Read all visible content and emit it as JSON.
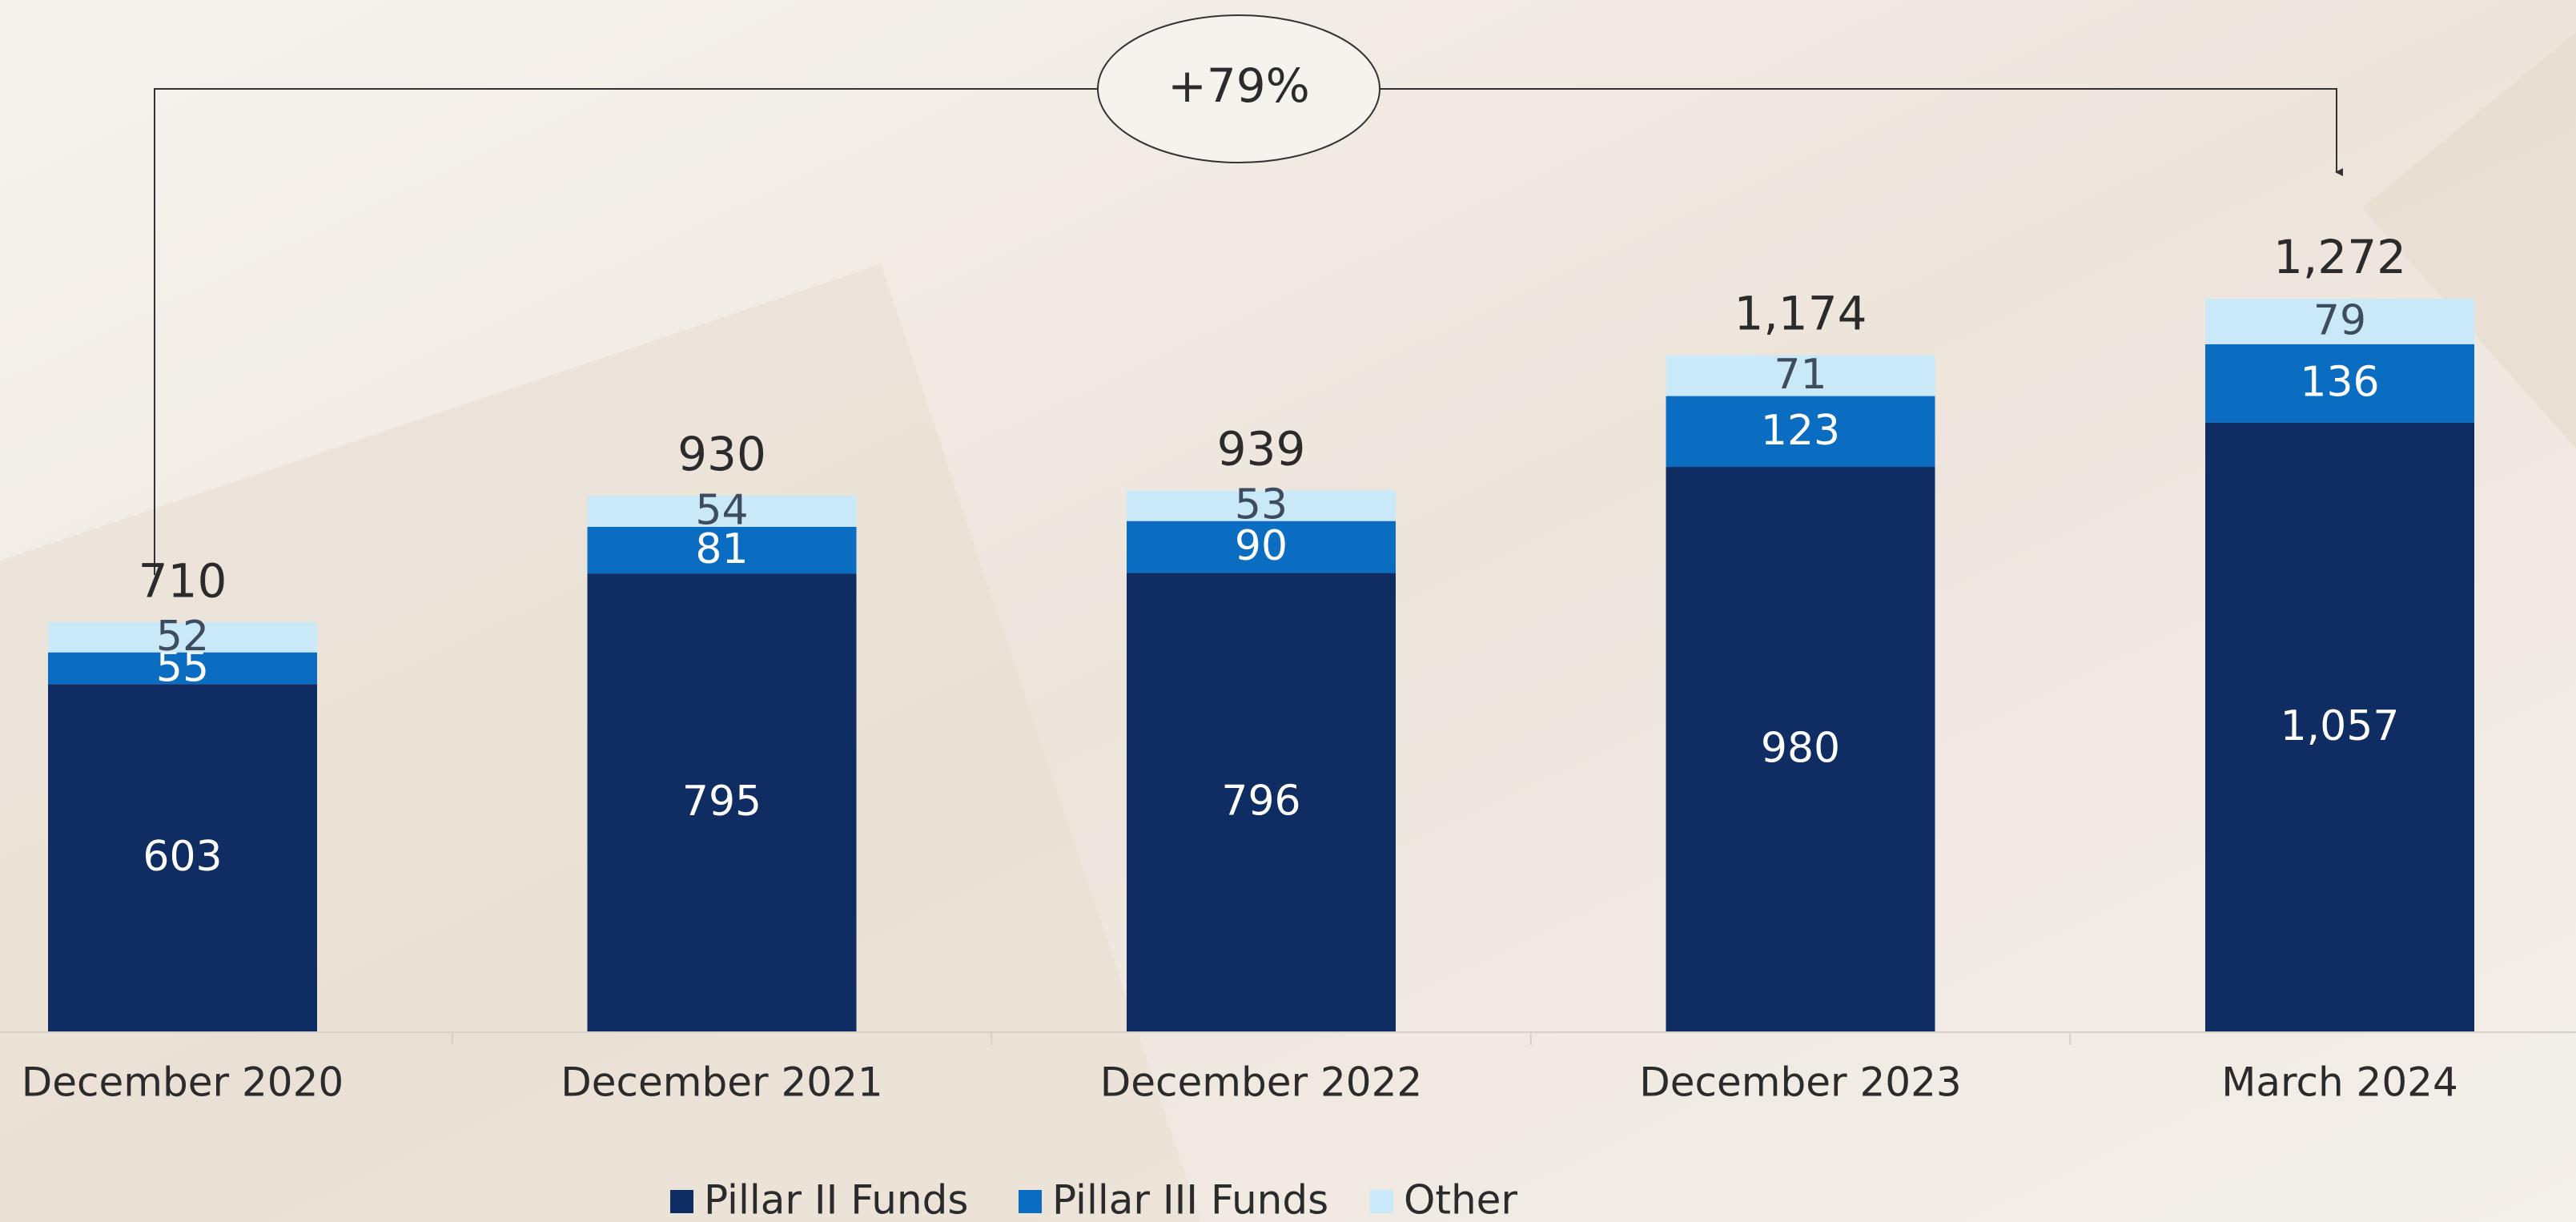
{
  "chart_data": {
    "type": "stacked_bar",
    "annotation": "+79%",
    "categories": [
      "December 2020",
      "December 2021",
      "December 2022",
      "December 2023",
      "March 2024"
    ],
    "series": [
      {
        "name": "Pillar II Funds",
        "color": "#0f2d62",
        "values": [
          603,
          795,
          796,
          980,
          1057
        ],
        "value_labels": [
          "603",
          "795",
          "796",
          "980",
          "1,057"
        ]
      },
      {
        "name": "Pillar III Funds",
        "color": "#0b6dc1",
        "values": [
          55,
          81,
          90,
          123,
          136
        ]
      },
      {
        "name": "Other",
        "color": "#c9e8f8",
        "values": [
          52,
          54,
          53,
          71,
          79
        ]
      }
    ],
    "totals": [
      710,
      930,
      939,
      1174,
      1272
    ],
    "total_labels": [
      "710",
      "930",
      "939",
      "1,174",
      "1,272"
    ]
  }
}
